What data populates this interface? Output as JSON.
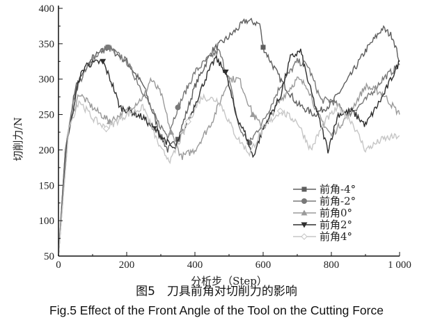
{
  "chart_data": {
    "type": "line",
    "xlabel": "分析步（Step）",
    "ylabel": "切削力/N",
    "xlim": [
      0,
      1000
    ],
    "ylim": [
      50,
      400
    ],
    "x_ticks": [
      "0",
      "200",
      "400",
      "600",
      "800",
      "1 000"
    ],
    "x_tick_values": [
      0,
      200,
      400,
      600,
      800,
      1000
    ],
    "y_ticks": [
      "50",
      "100",
      "150",
      "200",
      "250",
      "300",
      "350",
      "400"
    ],
    "y_tick_values": [
      50,
      100,
      150,
      200,
      250,
      300,
      350,
      400
    ],
    "grid": false,
    "legend_position": "bottom-right",
    "series": [
      {
        "name": "前角-4°",
        "color": "#5e5e5e",
        "marker": "square",
        "points": [
          [
            0,
            50
          ],
          [
            20,
            200
          ],
          [
            50,
            290
          ],
          [
            100,
            330
          ],
          [
            145,
            345
          ],
          [
            200,
            325
          ],
          [
            250,
            290
          ],
          [
            300,
            220
          ],
          [
            320,
            200
          ],
          [
            350,
            215
          ],
          [
            400,
            290
          ],
          [
            450,
            340
          ],
          [
            500,
            360
          ],
          [
            550,
            383
          ],
          [
            590,
            378
          ],
          [
            600,
            345
          ],
          [
            650,
            300
          ],
          [
            700,
            265
          ],
          [
            750,
            250
          ],
          [
            800,
            265
          ],
          [
            850,
            300
          ],
          [
            900,
            340
          ],
          [
            950,
            372
          ],
          [
            980,
            360
          ],
          [
            1000,
            325
          ]
        ]
      },
      {
        "name": "前角-2°",
        "color": "#787878",
        "marker": "circle",
        "points": [
          [
            0,
            50
          ],
          [
            20,
            200
          ],
          [
            50,
            285
          ],
          [
            100,
            330
          ],
          [
            145,
            345
          ],
          [
            200,
            325
          ],
          [
            250,
            280
          ],
          [
            290,
            240
          ],
          [
            320,
            220
          ],
          [
            350,
            260
          ],
          [
            400,
            310
          ],
          [
            440,
            330
          ],
          [
            470,
            340
          ],
          [
            500,
            300
          ],
          [
            530,
            230
          ],
          [
            560,
            210
          ],
          [
            600,
            240
          ],
          [
            650,
            290
          ],
          [
            700,
            325
          ],
          [
            730,
            320
          ],
          [
            770,
            270
          ],
          [
            800,
            270
          ],
          [
            850,
            250
          ],
          [
            900,
            270
          ],
          [
            950,
            300
          ],
          [
            1000,
            320
          ]
        ]
      },
      {
        "name": "前角0°",
        "color": "#9a9a9a",
        "marker": "triangle-up",
        "points": [
          [
            0,
            50
          ],
          [
            30,
            230
          ],
          [
            60,
            280
          ],
          [
            100,
            260
          ],
          [
            150,
            240
          ],
          [
            200,
            255
          ],
          [
            250,
            275
          ],
          [
            270,
            300
          ],
          [
            300,
            280
          ],
          [
            330,
            225
          ],
          [
            360,
            190
          ],
          [
            400,
            200
          ],
          [
            450,
            240
          ],
          [
            500,
            300
          ],
          [
            530,
            300
          ],
          [
            570,
            250
          ],
          [
            600,
            230
          ],
          [
            650,
            270
          ],
          [
            700,
            300
          ],
          [
            730,
            290
          ],
          [
            760,
            250
          ],
          [
            800,
            220
          ],
          [
            850,
            250
          ],
          [
            900,
            290
          ],
          [
            950,
            280
          ],
          [
            1000,
            250
          ]
        ]
      },
      {
        "name": "前角2°",
        "color": "#2e2e2e",
        "marker": "triangle-down",
        "points": [
          [
            0,
            50
          ],
          [
            25,
            210
          ],
          [
            60,
            300
          ],
          [
            80,
            320
          ],
          [
            130,
            325
          ],
          [
            160,
            290
          ],
          [
            180,
            260
          ],
          [
            210,
            255
          ],
          [
            250,
            245
          ],
          [
            280,
            230
          ],
          [
            310,
            215
          ],
          [
            340,
            200
          ],
          [
            380,
            240
          ],
          [
            430,
            300
          ],
          [
            460,
            330
          ],
          [
            490,
            310
          ],
          [
            520,
            250
          ],
          [
            550,
            220
          ],
          [
            570,
            190
          ],
          [
            600,
            230
          ],
          [
            650,
            275
          ],
          [
            680,
            330
          ],
          [
            710,
            340
          ],
          [
            730,
            300
          ],
          [
            760,
            250
          ],
          [
            790,
            200
          ],
          [
            820,
            250
          ],
          [
            860,
            255
          ],
          [
            900,
            235
          ],
          [
            950,
            275
          ],
          [
            1000,
            325
          ]
        ]
      },
      {
        "name": "前角4°",
        "color": "#c6c6c6",
        "marker": "diamond",
        "points": [
          [
            0,
            50
          ],
          [
            30,
            230
          ],
          [
            60,
            270
          ],
          [
            100,
            245
          ],
          [
            140,
            230
          ],
          [
            200,
            250
          ],
          [
            250,
            260
          ],
          [
            300,
            200
          ],
          [
            330,
            185
          ],
          [
            380,
            240
          ],
          [
            420,
            275
          ],
          [
            470,
            270
          ],
          [
            520,
            220
          ],
          [
            560,
            195
          ],
          [
            600,
            230
          ],
          [
            650,
            255
          ],
          [
            700,
            240
          ],
          [
            740,
            200
          ],
          [
            780,
            240
          ],
          [
            820,
            260
          ],
          [
            860,
            240
          ],
          [
            900,
            200
          ],
          [
            950,
            215
          ],
          [
            1000,
            220
          ]
        ]
      }
    ]
  },
  "caption": {
    "cn": "图5　刀具前角对切削力的影响",
    "en": "Fig.5  Effect of the Front Angle of the Tool on the Cutting Force"
  }
}
